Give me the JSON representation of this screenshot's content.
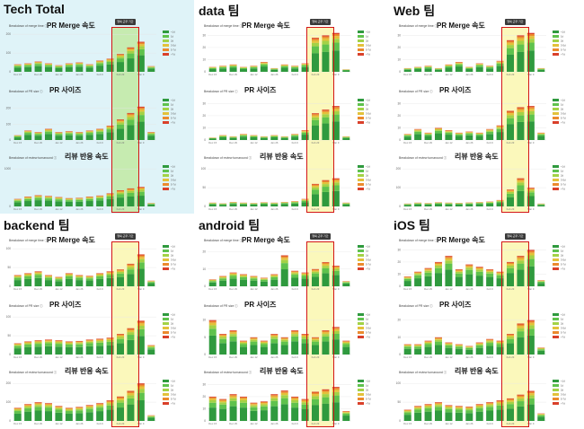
{
  "period_badge": "행복 근무 기간",
  "section_titles": {
    "merge": "PR Merge 속도",
    "size": "PR 사이즈",
    "review": "리뷰 반응 속도"
  },
  "section_small_labels": {
    "merge": "Breakdown of merge time ⓘ",
    "size": "Breakdown of PR size ⓘ",
    "review": "Breakdown of review turnaround ⓘ"
  },
  "chart_data": [
    {
      "panel": "Tech Total",
      "title": "Tech Total",
      "type": "bar",
      "stacked": true,
      "highlight": "#dff3f8",
      "band": "#c6ebb0",
      "categories": [
        "Dec 15",
        "",
        "Dec 29",
        "",
        "Jan 12",
        "",
        "Jan 26",
        "",
        "Feb 9",
        "",
        "Feb 23",
        "",
        "Mar 9",
        ""
      ],
      "highlight_range": [
        10,
        11
      ],
      "sections": [
        {
          "key": "merge",
          "yticks": [
            0,
            100,
            200
          ],
          "ymax": 220,
          "totals": [
            40,
            45,
            55,
            45,
            35,
            45,
            50,
            40,
            60,
            70,
            95,
            130,
            160,
            30
          ]
        },
        {
          "key": "size",
          "yticks": [
            0,
            100,
            200
          ],
          "ymax": 260,
          "totals": [
            30,
            60,
            50,
            70,
            50,
            55,
            50,
            60,
            70,
            90,
            130,
            170,
            210,
            50
          ]
        },
        {
          "key": "review",
          "yticks": [
            0,
            1000
          ],
          "ymax": 1100,
          "totals": [
            200,
            260,
            300,
            280,
            250,
            220,
            230,
            260,
            290,
            350,
            430,
            480,
            520,
            90
          ]
        }
      ]
    },
    {
      "panel": "data 팀",
      "title": "data 팀",
      "type": "bar",
      "stacked": true,
      "highlight": "#ffffff",
      "band": "#fbf8bb",
      "categories": [
        "Dec 15",
        "",
        "Dec 29",
        "",
        "Jan 12",
        "",
        "Jan 26",
        "",
        "Feb 9",
        "",
        "Feb 23",
        "",
        "Mar 9",
        ""
      ],
      "highlight_range": [
        10,
        11
      ],
      "sections": [
        {
          "key": "merge",
          "yticks": [
            0,
            10,
            20,
            30
          ],
          "ymax": 34,
          "totals": [
            4,
            5,
            6,
            4,
            5,
            8,
            3,
            6,
            5,
            7,
            28,
            30,
            32,
            2
          ]
        },
        {
          "key": "size",
          "yticks": [
            0,
            10,
            20,
            30
          ],
          "ymax": 34,
          "totals": [
            2,
            4,
            3,
            5,
            4,
            3,
            4,
            3,
            5,
            8,
            22,
            25,
            28,
            3
          ]
        },
        {
          "key": "review",
          "yticks": [
            0,
            50,
            100
          ],
          "ymax": 110,
          "totals": [
            10,
            8,
            12,
            10,
            9,
            11,
            10,
            12,
            14,
            20,
            60,
            70,
            75,
            10
          ]
        }
      ]
    },
    {
      "panel": "Web 팀",
      "title": "Web 팀",
      "type": "bar",
      "stacked": true,
      "highlight": "#ffffff",
      "band": "#fbf8bb",
      "categories": [
        "Dec 15",
        "",
        "Dec 29",
        "",
        "Jan 12",
        "",
        "Jan 26",
        "",
        "Feb 9",
        "",
        "Feb 23",
        "",
        "Mar 9",
        ""
      ],
      "highlight_range": [
        10,
        11
      ],
      "sections": [
        {
          "key": "merge",
          "yticks": [
            0,
            10,
            20,
            30
          ],
          "ymax": 34,
          "totals": [
            3,
            4,
            5,
            3,
            6,
            8,
            4,
            7,
            5,
            9,
            26,
            30,
            32,
            3
          ]
        },
        {
          "key": "size",
          "yticks": [
            0,
            10,
            20,
            30
          ],
          "ymax": 34,
          "totals": [
            5,
            9,
            6,
            10,
            8,
            6,
            7,
            6,
            9,
            12,
            24,
            27,
            28,
            6
          ]
        },
        {
          "key": "review",
          "yticks": [
            0,
            100,
            200
          ],
          "ymax": 220,
          "totals": [
            15,
            20,
            18,
            22,
            20,
            19,
            21,
            23,
            26,
            34,
            90,
            150,
            100,
            15
          ]
        }
      ]
    },
    {
      "panel": "backend 팀",
      "title": "backend 팀",
      "type": "bar",
      "stacked": true,
      "highlight": "#ffffff",
      "band": "#fbf8bb",
      "categories": [
        "Dec 15",
        "",
        "Dec 29",
        "",
        "Jan 12",
        "",
        "Jan 26",
        "",
        "Feb 9",
        "",
        "Feb 23",
        "",
        "Mar 9",
        ""
      ],
      "highlight_range": [
        10,
        11
      ],
      "sections": [
        {
          "key": "merge",
          "yticks": [
            0,
            50,
            100
          ],
          "ymax": 110,
          "totals": [
            30,
            35,
            40,
            30,
            25,
            35,
            30,
            28,
            35,
            40,
            45,
            60,
            85,
            15
          ]
        },
        {
          "key": "size",
          "yticks": [
            0,
            50,
            100
          ],
          "ymax": 110,
          "totals": [
            30,
            35,
            38,
            40,
            38,
            35,
            36,
            40,
            42,
            45,
            55,
            70,
            90,
            25
          ]
        },
        {
          "key": "review",
          "yticks": [
            0,
            100,
            200
          ],
          "ymax": 220,
          "totals": [
            70,
            90,
            100,
            95,
            80,
            70,
            75,
            85,
            95,
            110,
            130,
            160,
            200,
            30
          ]
        }
      ]
    },
    {
      "panel": "android 팀",
      "title": "android 팀",
      "type": "bar",
      "stacked": true,
      "highlight": "#ffffff",
      "band": "#fbf8bb",
      "categories": [
        "Dec 15",
        "",
        "Dec 29",
        "",
        "Jan 12",
        "",
        "Jan 26",
        "",
        "Feb 9",
        "",
        "Feb 23",
        "",
        "Mar 9",
        ""
      ],
      "highlight_range": [
        10,
        11
      ],
      "sections": [
        {
          "key": "merge",
          "yticks": [
            0,
            10,
            20
          ],
          "ymax": 24,
          "totals": [
            4,
            6,
            8,
            7,
            6,
            5,
            7,
            18,
            9,
            8,
            10,
            14,
            12,
            3
          ]
        },
        {
          "key": "size",
          "yticks": [
            0,
            5,
            10
          ],
          "ymax": 12,
          "totals": [
            10,
            6,
            7,
            4,
            5,
            4,
            6,
            5,
            7,
            6,
            5,
            7,
            8,
            4
          ]
        },
        {
          "key": "review",
          "yticks": [
            0,
            10,
            20,
            30
          ],
          "ymax": 34,
          "totals": [
            20,
            18,
            22,
            20,
            15,
            16,
            22,
            25,
            20,
            18,
            24,
            26,
            28,
            8
          ]
        }
      ]
    },
    {
      "panel": "iOS 팀",
      "title": "iOS 팀",
      "type": "bar",
      "stacked": true,
      "highlight": "#ffffff",
      "band": "#fbf8bb",
      "categories": [
        "Dec 15",
        "",
        "Dec 29",
        "",
        "Jan 12",
        "",
        "Jan 26",
        "",
        "Feb 9",
        "",
        "Feb 23",
        "",
        "Mar 9",
        ""
      ],
      "highlight_range": [
        10,
        11
      ],
      "sections": [
        {
          "key": "merge",
          "yticks": [
            0,
            10,
            20,
            30
          ],
          "ymax": 34,
          "totals": [
            8,
            12,
            15,
            20,
            25,
            14,
            18,
            16,
            14,
            12,
            20,
            25,
            30,
            5
          ]
        },
        {
          "key": "size",
          "yticks": [
            0,
            10,
            20
          ],
          "ymax": 24,
          "totals": [
            6,
            6,
            8,
            10,
            7,
            6,
            5,
            7,
            9,
            8,
            12,
            18,
            20,
            4
          ]
        },
        {
          "key": "review",
          "yticks": [
            0,
            50,
            100
          ],
          "ymax": 110,
          "totals": [
            30,
            40,
            45,
            50,
            42,
            40,
            38,
            45,
            50,
            55,
            60,
            70,
            80,
            20
          ]
        }
      ]
    }
  ]
}
